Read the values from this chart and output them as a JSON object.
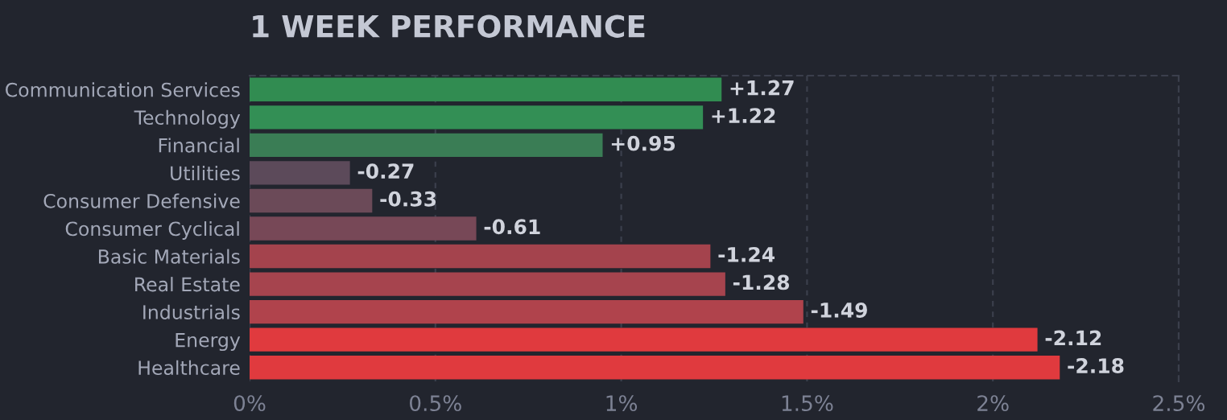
{
  "chart_data": {
    "type": "bar",
    "orientation": "horizontal",
    "title": "1 WEEK PERFORMANCE",
    "categories": [
      "Communication Services",
      "Technology",
      "Financial",
      "Utilities",
      "Consumer Defensive",
      "Consumer Cyclical",
      "Basic Materials",
      "Real Estate",
      "Industrials",
      "Energy",
      "Healthcare"
    ],
    "values": [
      1.27,
      1.22,
      0.95,
      -0.27,
      -0.33,
      -0.61,
      -1.24,
      -1.28,
      -1.49,
      -2.12,
      -2.18
    ],
    "base": [
      0,
      0,
      0,
      0.27,
      0.33,
      0.61,
      1.24,
      1.28,
      1.49,
      2.12,
      2.18
    ],
    "value_labels": [
      "+1.27",
      "+1.22",
      "+0.95",
      "-0.27",
      "-0.33",
      "-0.61",
      "-1.24",
      "-1.28",
      "-1.49",
      "-2.12",
      "-2.18"
    ],
    "colors": [
      "#318c51",
      "#338f55",
      "#3a7d55",
      "#5c4a5a",
      "#6b4a58",
      "#774857",
      "#a4434d",
      "#a6444e",
      "#b0434c",
      "#e03a3e",
      "#e03a3e"
    ],
    "xlim": [
      0,
      2.5
    ],
    "xticks": [
      {
        "value": 0,
        "label": "0%"
      },
      {
        "value": 0.5,
        "label": "0.5%"
      },
      {
        "value": 1,
        "label": "1%"
      },
      {
        "value": 1.5,
        "label": "1.5%"
      },
      {
        "value": 2,
        "label": "2%"
      },
      {
        "value": 2.5,
        "label": "2.5%"
      }
    ],
    "grid": "x"
  }
}
